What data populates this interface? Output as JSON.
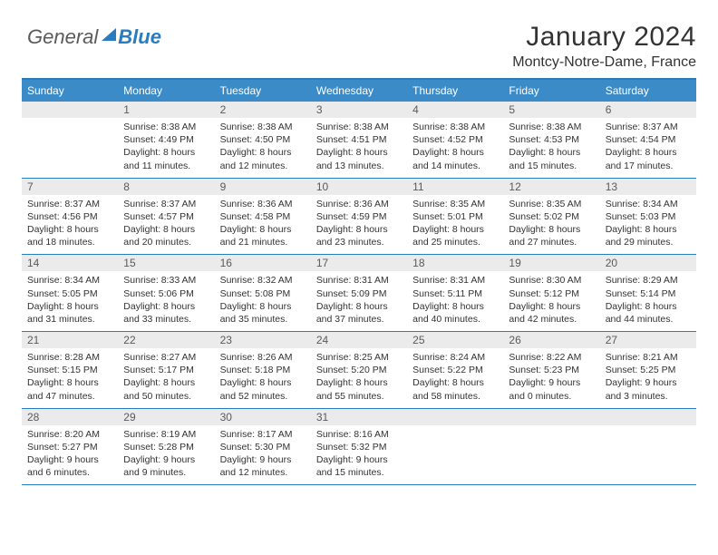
{
  "brand": {
    "part1": "General",
    "part2": "Blue"
  },
  "title": "January 2024",
  "location": "Montcy-Notre-Dame, France",
  "colors": {
    "accent": "#2b7bbf",
    "header_bg": "#3b8bc9",
    "daynum_bg": "#ebebeb",
    "text": "#333333",
    "muted": "#5a5a5a"
  },
  "day_names": [
    "Sunday",
    "Monday",
    "Tuesday",
    "Wednesday",
    "Thursday",
    "Friday",
    "Saturday"
  ],
  "weeks": [
    [
      null,
      {
        "d": "1",
        "sr": "8:38 AM",
        "ss": "4:49 PM",
        "dl": "8 hours and 11 minutes."
      },
      {
        "d": "2",
        "sr": "8:38 AM",
        "ss": "4:50 PM",
        "dl": "8 hours and 12 minutes."
      },
      {
        "d": "3",
        "sr": "8:38 AM",
        "ss": "4:51 PM",
        "dl": "8 hours and 13 minutes."
      },
      {
        "d": "4",
        "sr": "8:38 AM",
        "ss": "4:52 PM",
        "dl": "8 hours and 14 minutes."
      },
      {
        "d": "5",
        "sr": "8:38 AM",
        "ss": "4:53 PM",
        "dl": "8 hours and 15 minutes."
      },
      {
        "d": "6",
        "sr": "8:37 AM",
        "ss": "4:54 PM",
        "dl": "8 hours and 17 minutes."
      }
    ],
    [
      {
        "d": "7",
        "sr": "8:37 AM",
        "ss": "4:56 PM",
        "dl": "8 hours and 18 minutes."
      },
      {
        "d": "8",
        "sr": "8:37 AM",
        "ss": "4:57 PM",
        "dl": "8 hours and 20 minutes."
      },
      {
        "d": "9",
        "sr": "8:36 AM",
        "ss": "4:58 PM",
        "dl": "8 hours and 21 minutes."
      },
      {
        "d": "10",
        "sr": "8:36 AM",
        "ss": "4:59 PM",
        "dl": "8 hours and 23 minutes."
      },
      {
        "d": "11",
        "sr": "8:35 AM",
        "ss": "5:01 PM",
        "dl": "8 hours and 25 minutes."
      },
      {
        "d": "12",
        "sr": "8:35 AM",
        "ss": "5:02 PM",
        "dl": "8 hours and 27 minutes."
      },
      {
        "d": "13",
        "sr": "8:34 AM",
        "ss": "5:03 PM",
        "dl": "8 hours and 29 minutes."
      }
    ],
    [
      {
        "d": "14",
        "sr": "8:34 AM",
        "ss": "5:05 PM",
        "dl": "8 hours and 31 minutes."
      },
      {
        "d": "15",
        "sr": "8:33 AM",
        "ss": "5:06 PM",
        "dl": "8 hours and 33 minutes."
      },
      {
        "d": "16",
        "sr": "8:32 AM",
        "ss": "5:08 PM",
        "dl": "8 hours and 35 minutes."
      },
      {
        "d": "17",
        "sr": "8:31 AM",
        "ss": "5:09 PM",
        "dl": "8 hours and 37 minutes."
      },
      {
        "d": "18",
        "sr": "8:31 AM",
        "ss": "5:11 PM",
        "dl": "8 hours and 40 minutes."
      },
      {
        "d": "19",
        "sr": "8:30 AM",
        "ss": "5:12 PM",
        "dl": "8 hours and 42 minutes."
      },
      {
        "d": "20",
        "sr": "8:29 AM",
        "ss": "5:14 PM",
        "dl": "8 hours and 44 minutes."
      }
    ],
    [
      {
        "d": "21",
        "sr": "8:28 AM",
        "ss": "5:15 PM",
        "dl": "8 hours and 47 minutes."
      },
      {
        "d": "22",
        "sr": "8:27 AM",
        "ss": "5:17 PM",
        "dl": "8 hours and 50 minutes."
      },
      {
        "d": "23",
        "sr": "8:26 AM",
        "ss": "5:18 PM",
        "dl": "8 hours and 52 minutes."
      },
      {
        "d": "24",
        "sr": "8:25 AM",
        "ss": "5:20 PM",
        "dl": "8 hours and 55 minutes."
      },
      {
        "d": "25",
        "sr": "8:24 AM",
        "ss": "5:22 PM",
        "dl": "8 hours and 58 minutes."
      },
      {
        "d": "26",
        "sr": "8:22 AM",
        "ss": "5:23 PM",
        "dl": "9 hours and 0 minutes."
      },
      {
        "d": "27",
        "sr": "8:21 AM",
        "ss": "5:25 PM",
        "dl": "9 hours and 3 minutes."
      }
    ],
    [
      {
        "d": "28",
        "sr": "8:20 AM",
        "ss": "5:27 PM",
        "dl": "9 hours and 6 minutes."
      },
      {
        "d": "29",
        "sr": "8:19 AM",
        "ss": "5:28 PM",
        "dl": "9 hours and 9 minutes."
      },
      {
        "d": "30",
        "sr": "8:17 AM",
        "ss": "5:30 PM",
        "dl": "9 hours and 12 minutes."
      },
      {
        "d": "31",
        "sr": "8:16 AM",
        "ss": "5:32 PM",
        "dl": "9 hours and 15 minutes."
      },
      null,
      null,
      null
    ]
  ],
  "labels": {
    "sunrise": "Sunrise: ",
    "sunset": "Sunset: ",
    "daylight": "Daylight: "
  }
}
